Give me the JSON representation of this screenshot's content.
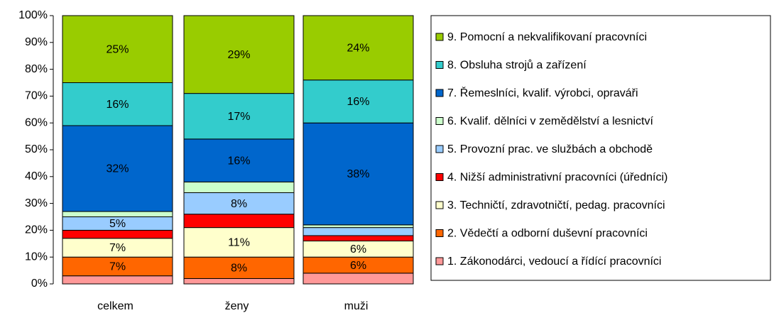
{
  "chart_data": {
    "type": "stacked_bar",
    "categories": [
      "celkem",
      "ženy",
      "muži"
    ],
    "ylim": [
      0,
      100
    ],
    "yticks": [
      {
        "value": 0,
        "label": "0%"
      },
      {
        "value": 10,
        "label": "10%"
      },
      {
        "value": 20,
        "label": "20%"
      },
      {
        "value": 30,
        "label": "30%"
      },
      {
        "value": 40,
        "label": "40%"
      },
      {
        "value": 50,
        "label": "50%"
      },
      {
        "value": 60,
        "label": "60%"
      },
      {
        "value": 70,
        "label": "70%"
      },
      {
        "value": 80,
        "label": "80%"
      },
      {
        "value": 90,
        "label": "90%"
      },
      {
        "value": 100,
        "label": "100%"
      }
    ],
    "legend": "right",
    "series": [
      {
        "name": "1. Zákonodárci, vedoucí a řídící pracovníci",
        "color": "#ff9999",
        "values": [
          3,
          2,
          4
        ]
      },
      {
        "name": "2. Vědečtí a odborní duševní pracovníci",
        "color": "#ff6600",
        "values": [
          7,
          8,
          6
        ],
        "value_labels": [
          "7%",
          "8%",
          "6%"
        ]
      },
      {
        "name": "3. Techničtí, zdravotničtí, pedag. pracovníci",
        "color": "#ffffcc",
        "values": [
          7,
          11,
          6
        ],
        "value_labels": [
          "7%",
          "11%",
          "6%"
        ]
      },
      {
        "name": "4. Nižší administrativní pracovníci (úředníci)",
        "color": "#ff0000",
        "values": [
          3,
          5,
          2
        ]
      },
      {
        "name": "5. Provozní prac. ve službách a obchodě",
        "color": "#99ccff",
        "values": [
          5,
          8,
          3
        ],
        "value_labels": [
          "5%",
          "8%",
          null
        ]
      },
      {
        "name": "6. Kvalif. dělníci v zemědělství a lesnictví",
        "color": "#ccffcc",
        "values": [
          2,
          4,
          1
        ]
      },
      {
        "name": "7. Řemeslníci, kvalif. výrobci, opraváři",
        "color": "#0066cc",
        "values": [
          32,
          16,
          38
        ],
        "value_labels": [
          "32%",
          "16%",
          "38%"
        ]
      },
      {
        "name": "8. Obsluha strojů a zařízení",
        "color": "#33cccc",
        "values": [
          16,
          17,
          16
        ],
        "value_labels": [
          "16%",
          "17%",
          "16%"
        ]
      },
      {
        "name": "9. Pomocní a nekvalifikovaní pracovníci",
        "color": "#99cc00",
        "values": [
          25,
          29,
          24
        ],
        "value_labels": [
          "25%",
          "29%",
          "24%"
        ]
      }
    ]
  }
}
